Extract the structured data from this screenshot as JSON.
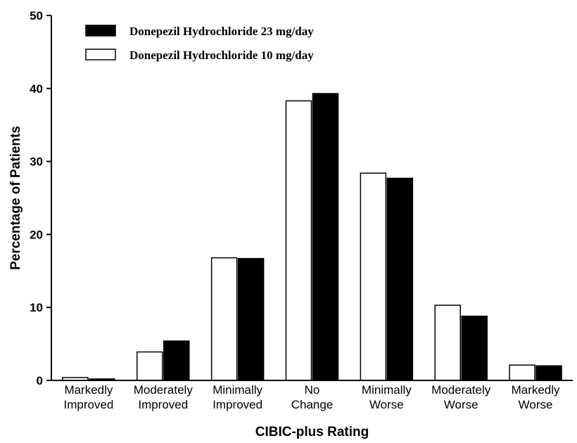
{
  "chart_data": {
    "type": "bar",
    "title": "",
    "xlabel": "CIBIC-plus Rating",
    "ylabel": "Percentage of Patients",
    "ylim": [
      0,
      50
    ],
    "yticks": [
      "0",
      "10",
      "20",
      "30",
      "40",
      "50"
    ],
    "grid": false,
    "legend_position": "top-left",
    "categories": [
      [
        "Markedly",
        "Improved"
      ],
      [
        "Moderately",
        "Improved"
      ],
      [
        "Minimally",
        "Improved"
      ],
      [
        "No",
        "Change"
      ],
      [
        "Minimally",
        "Worse"
      ],
      [
        "Moderately",
        "Worse"
      ],
      [
        "Markedly",
        "Worse"
      ]
    ],
    "series": [
      {
        "name": "Donepezil Hydrochloride 10 mg/day",
        "color": "#ffffff",
        "values": [
          0.4,
          3.9,
          16.8,
          38.3,
          28.4,
          10.3,
          2.1
        ]
      },
      {
        "name": "Donepezil Hydrochloride 23 mg/day",
        "color": "#000000",
        "values": [
          0.2,
          5.4,
          16.7,
          39.3,
          27.7,
          8.8,
          2.0
        ]
      }
    ],
    "legend_order": [
      1,
      0
    ]
  }
}
